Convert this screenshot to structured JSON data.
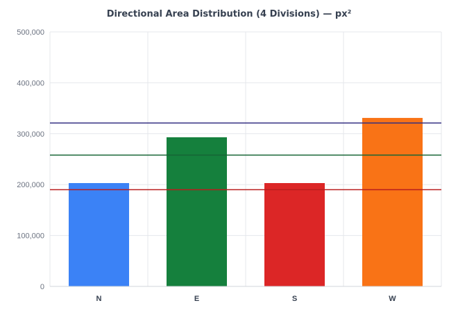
{
  "chart_data": {
    "type": "bar",
    "title": "Directional Area Distribution (4 Divisions) — px²",
    "xlabel": "",
    "ylabel": "",
    "categories": [
      "N",
      "E",
      "S",
      "W"
    ],
    "values": [
      203000,
      293000,
      203000,
      331000
    ],
    "bar_colors": [
      "#3b82f6",
      "#15803d",
      "#dc2626",
      "#f97316"
    ],
    "ylim": [
      0,
      500000
    ],
    "yticks": [
      0,
      100000,
      200000,
      300000,
      400000,
      500000
    ],
    "ytick_labels": [
      "0",
      "100,000",
      "200,000",
      "300,000",
      "400,000",
      "500,000"
    ],
    "reference_lines": [
      {
        "value": 321000,
        "color": "#312e81"
      },
      {
        "value": 258000,
        "color": "#166534"
      },
      {
        "value": 190000,
        "color": "#b91c1c"
      }
    ],
    "grid": true,
    "legend": "none"
  }
}
